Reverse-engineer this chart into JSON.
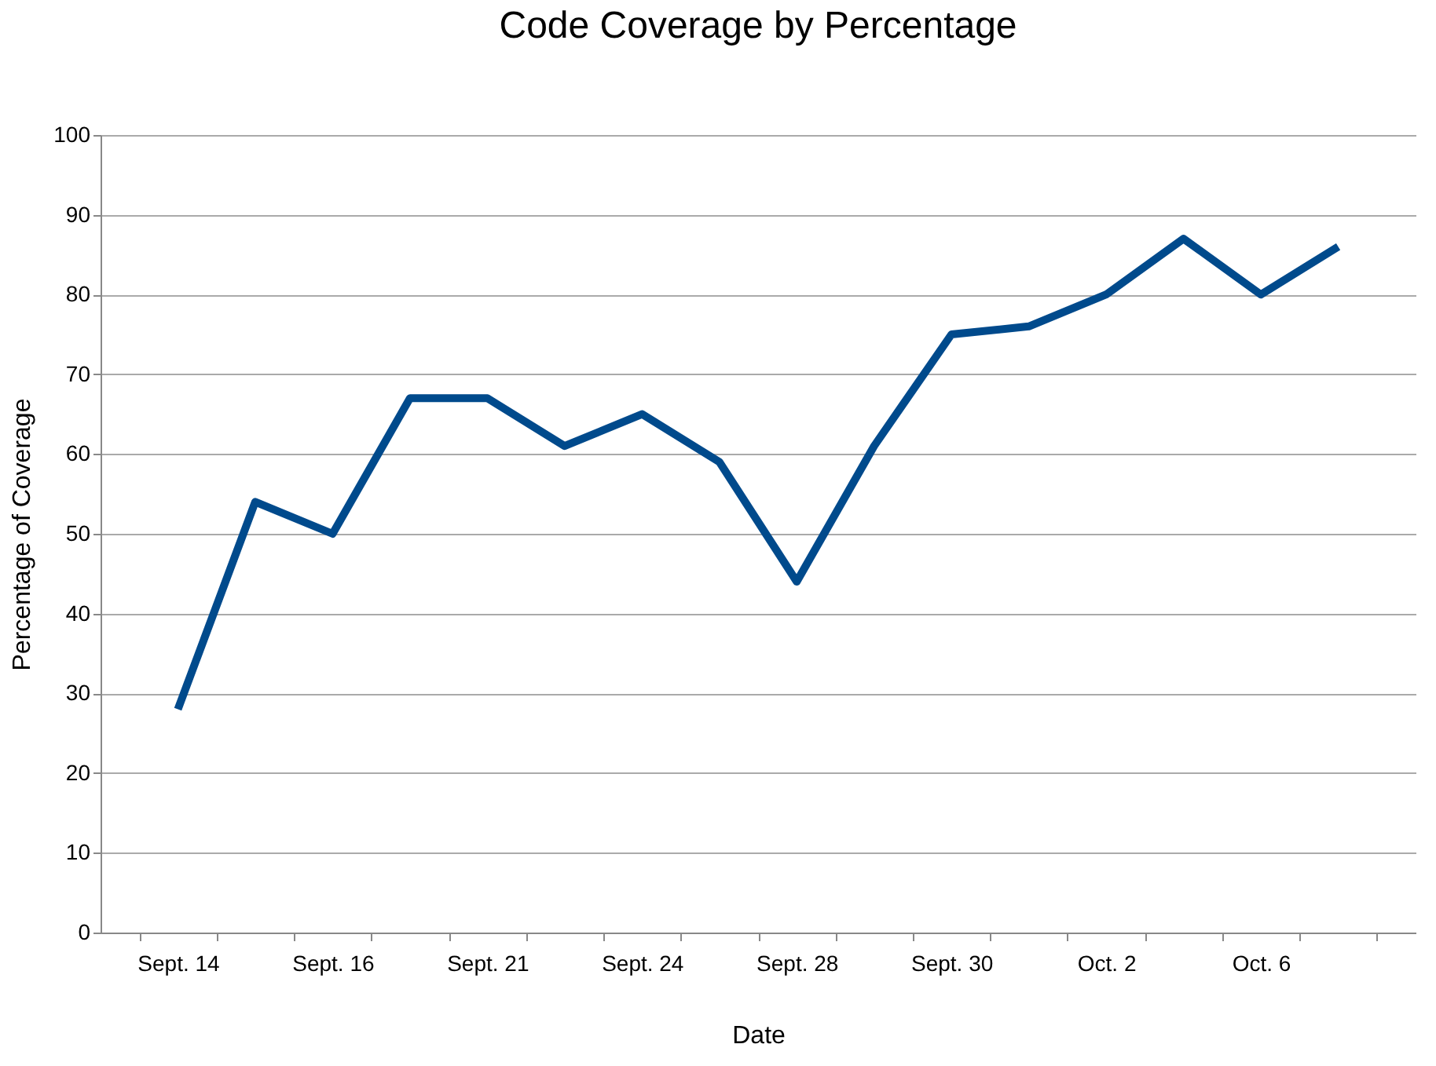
{
  "chart_data": {
    "type": "line",
    "title": "Code Coverage by Percentage",
    "xlabel": "Date",
    "ylabel": "Percentage of Coverage",
    "categories": [
      "Sept. 14",
      null,
      "Sept. 16",
      null,
      "Sept. 21",
      null,
      "Sept. 24",
      null,
      "Sept. 28",
      null,
      "Sept. 30",
      null,
      "Oct. 2",
      null,
      "Oct. 6",
      null
    ],
    "series": [
      {
        "color": "#004a8c",
        "values": [
          28,
          54,
          50,
          67,
          67,
          61,
          65,
          59,
          44,
          61,
          75,
          76,
          80,
          87,
          80,
          86
        ]
      }
    ],
    "ylim": [
      0,
      100
    ],
    "yticks": [
      0,
      10,
      20,
      30,
      40,
      50,
      60,
      70,
      80,
      90,
      100
    ],
    "grid": "y",
    "marker": "none",
    "line_style": "solid"
  }
}
